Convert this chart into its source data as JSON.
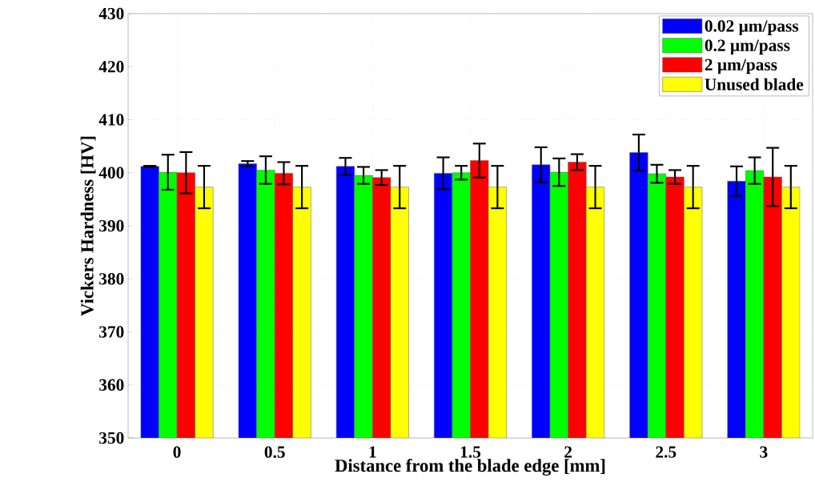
{
  "chart_data": {
    "type": "bar",
    "xlabel": "Distance from the blade edge [mm]",
    "ylabel": "Vickers Hardness [HV]",
    "categories": [
      "0",
      "0.5",
      "1",
      "1.5",
      "2",
      "2.5",
      "3"
    ],
    "series": [
      {
        "name": "0.02 µm/pass",
        "color": "#0000ff",
        "values": [
          401.2,
          401.7,
          401.2,
          399.9,
          401.5,
          403.8,
          398.4
        ],
        "errors": [
          0.1,
          0.5,
          1.6,
          3.0,
          3.3,
          3.4,
          2.8
        ]
      },
      {
        "name": "0.2 µm/pass",
        "color": "#00ff00",
        "values": [
          400.1,
          400.5,
          399.5,
          400.0,
          400.1,
          399.8,
          400.4
        ],
        "errors": [
          3.3,
          2.6,
          1.6,
          1.3,
          2.6,
          1.7,
          2.5
        ]
      },
      {
        "name": "2 µm/pass",
        "color": "#ff0000",
        "values": [
          400.0,
          399.9,
          399.1,
          402.3,
          402.0,
          399.2,
          399.2
        ],
        "errors": [
          3.9,
          2.1,
          1.4,
          3.2,
          1.5,
          1.3,
          5.5
        ]
      },
      {
        "name": "Unused blade",
        "color": "#ffff00",
        "values": [
          397.3,
          397.3,
          397.3,
          397.3,
          397.3,
          397.3,
          397.3
        ],
        "errors": [
          4.0,
          4.0,
          4.0,
          4.0,
          4.0,
          4.0,
          4.0
        ]
      }
    ],
    "ylim": [
      350,
      430
    ],
    "yticks": [
      350,
      360,
      370,
      380,
      390,
      400,
      410,
      420,
      430
    ],
    "grid": true,
    "legend": "top right"
  }
}
